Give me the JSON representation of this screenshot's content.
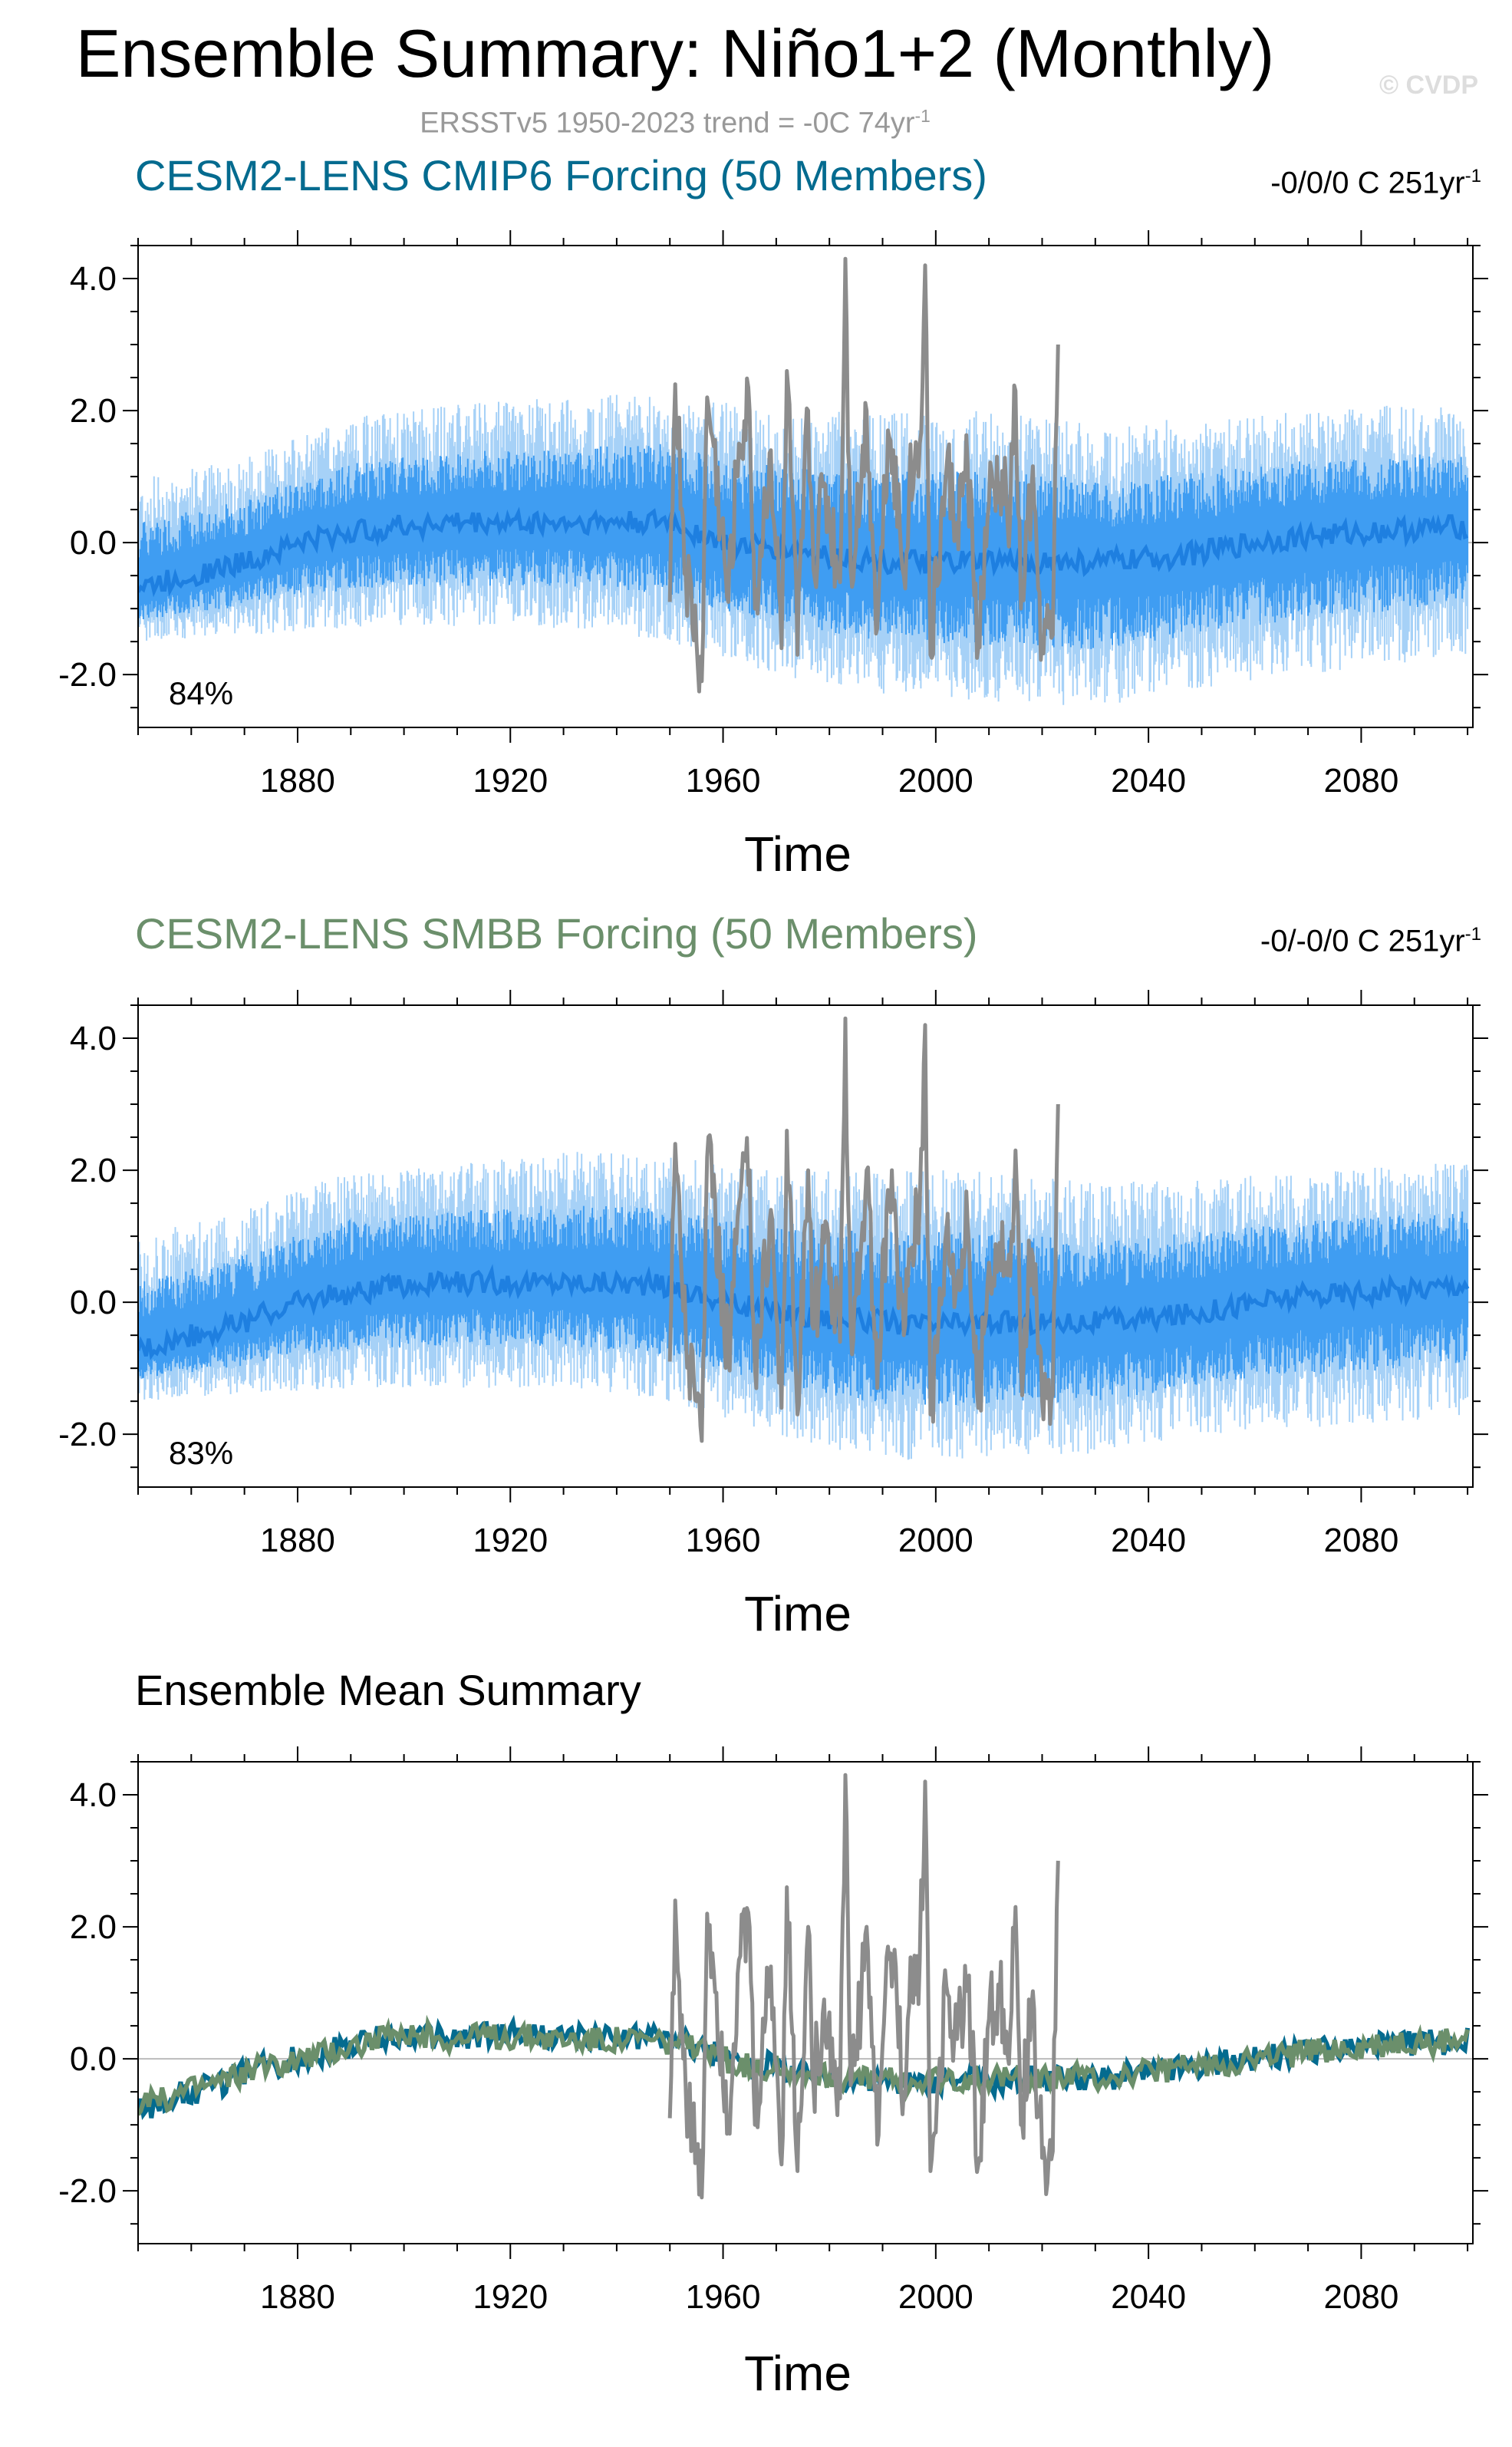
{
  "header": {
    "title": "Ensemble Summary: Niño1+2 (Monthly)",
    "watermark": "© CVDP",
    "subtitle": "ERSSTv5 1950-2023 trend = -0C 74yr",
    "subtitle_sup": "-1"
  },
  "chart_data": [
    {
      "type": "line",
      "title": "CESM2-LENS CMIP6 Forcing (50 Members)",
      "title_color": "#046b8f",
      "trend_label": "-0/0/0 C 251yr",
      "trend_sup": "-1",
      "percent_label": "84%",
      "xlabel": "Time",
      "xlim": [
        1850,
        2101
      ],
      "ylim": [
        -2.8,
        4.5
      ],
      "xticks": [
        1880,
        1920,
        1960,
        2000,
        2040,
        2080
      ],
      "yticks": [
        -2.0,
        0.0,
        2.0,
        4.0
      ],
      "ytick_labels": [
        "-2.0",
        "0.0",
        "2.0",
        "4.0"
      ],
      "grid": false,
      "series": [
        {
          "role": "ensemble-range",
          "color": "#a6d1f7"
        },
        {
          "role": "ensemble-iqr",
          "color": "#3f9df2"
        },
        {
          "role": "ensemble-mean",
          "color": "#1e7fe0"
        },
        {
          "role": "observations",
          "color": "#8c8c8c"
        }
      ],
      "ensemble_mean": {
        "x": [
          1850,
          1860,
          1870,
          1880,
          1890,
          1900,
          1910,
          1920,
          1930,
          1940,
          1950,
          1960,
          1970,
          1980,
          1990,
          2000,
          2010,
          2020,
          2030,
          2040,
          2050,
          2060,
          2070,
          2080,
          2090,
          2100
        ],
        "y": [
          -0.7,
          -0.5,
          -0.3,
          0.0,
          0.15,
          0.25,
          0.3,
          0.3,
          0.3,
          0.3,
          0.3,
          0.0,
          -0.1,
          -0.2,
          -0.3,
          -0.3,
          -0.3,
          -0.3,
          -0.3,
          -0.25,
          -0.15,
          0.0,
          0.1,
          0.15,
          0.2,
          0.25
        ]
      },
      "ensemble_max": {
        "x": [
          1850,
          1870,
          1890,
          1910,
          1930,
          1950,
          1970,
          1990,
          2010,
          2030,
          2050,
          2070,
          2090,
          2100
        ],
        "y": [
          1.0,
          1.3,
          1.9,
          2.1,
          2.2,
          2.3,
          2.0,
          2.0,
          2.0,
          1.8,
          1.9,
          2.0,
          2.1,
          2.0
        ]
      },
      "ensemble_min": {
        "x": [
          1850,
          1870,
          1890,
          1910,
          1930,
          1950,
          1970,
          1990,
          2010,
          2030,
          2050,
          2070,
          2090,
          2100
        ],
        "y": [
          -1.5,
          -1.4,
          -1.3,
          -1.3,
          -1.3,
          -1.5,
          -2.0,
          -2.3,
          -2.4,
          -2.5,
          -2.2,
          -2.0,
          -1.8,
          -1.7
        ]
      },
      "observations": {
        "x": [
          1950,
          1951,
          1953,
          1955,
          1956,
          1957,
          1958,
          1961,
          1963,
          1965,
          1966,
          1968,
          1969,
          1971,
          1972,
          1974,
          1976,
          1977,
          1979,
          1982,
          1983,
          1984,
          1986,
          1987,
          1989,
          1991,
          1992,
          1994,
          1995,
          1997,
          1998,
          1999,
          2002,
          2004,
          2006,
          2008,
          2010,
          2012,
          2014,
          2015,
          2016,
          2018,
          2020,
          2022,
          2023
        ],
        "y": [
          -0.9,
          2.4,
          -0.5,
          -1.5,
          -2.1,
          2.2,
          1.6,
          -0.9,
          1.5,
          2.0,
          -1.0,
          0.6,
          1.4,
          -1.6,
          2.6,
          -1.7,
          2.0,
          -0.4,
          0.9,
          -0.6,
          4.3,
          -0.4,
          0.9,
          2.0,
          -1.3,
          1.7,
          1.4,
          -0.5,
          0.8,
          1.5,
          4.2,
          -1.7,
          1.1,
          0.3,
          1.2,
          -1.6,
          0.6,
          0.9,
          0.4,
          2.3,
          -1.0,
          0.8,
          -1.5,
          -1.4,
          3.0
        ]
      }
    },
    {
      "type": "line",
      "title": "CESM2-LENS SMBB Forcing (50 Members)",
      "title_color": "#6b8f6b",
      "trend_label": "-0/-0/0 C 251yr",
      "trend_sup": "-1",
      "percent_label": "83%",
      "xlabel": "Time",
      "xlim": [
        1850,
        2101
      ],
      "ylim": [
        -2.8,
        4.5
      ],
      "xticks": [
        1880,
        1920,
        1960,
        2000,
        2040,
        2080
      ],
      "yticks": [
        -2.0,
        0.0,
        2.0,
        4.0
      ],
      "ytick_labels": [
        "-2.0",
        "0.0",
        "2.0",
        "4.0"
      ],
      "grid": false,
      "series": [
        {
          "role": "ensemble-range",
          "color": "#a6d1f7"
        },
        {
          "role": "ensemble-iqr",
          "color": "#3f9df2"
        },
        {
          "role": "ensemble-mean",
          "color": "#1e7fe0"
        },
        {
          "role": "observations",
          "color": "#8c8c8c"
        }
      ],
      "ensemble_mean": {
        "x": [
          1850,
          1860,
          1870,
          1880,
          1890,
          1900,
          1910,
          1920,
          1930,
          1940,
          1950,
          1960,
          1970,
          1980,
          1990,
          2000,
          2010,
          2020,
          2030,
          2040,
          2050,
          2060,
          2070,
          2080,
          2090,
          2100
        ],
        "y": [
          -0.7,
          -0.5,
          -0.3,
          0.0,
          0.15,
          0.25,
          0.3,
          0.3,
          0.3,
          0.3,
          0.25,
          0.0,
          -0.15,
          -0.25,
          -0.3,
          -0.35,
          -0.3,
          -0.3,
          -0.3,
          -0.25,
          -0.15,
          0.0,
          0.1,
          0.15,
          0.2,
          0.3
        ]
      },
      "ensemble_max": {
        "x": [
          1850,
          1870,
          1890,
          1910,
          1930,
          1950,
          1970,
          1990,
          2010,
          2030,
          2050,
          2070,
          2090,
          2100
        ],
        "y": [
          1.0,
          1.4,
          2.0,
          2.1,
          2.3,
          2.2,
          2.0,
          2.0,
          2.0,
          1.8,
          1.9,
          2.0,
          2.1,
          2.1
        ]
      },
      "ensemble_min": {
        "x": [
          1850,
          1870,
          1890,
          1910,
          1930,
          1950,
          1970,
          1990,
          2010,
          2030,
          2050,
          2070,
          2090,
          2100
        ],
        "y": [
          -1.5,
          -1.4,
          -1.3,
          -1.3,
          -1.3,
          -1.5,
          -2.0,
          -2.4,
          -2.4,
          -2.3,
          -2.0,
          -1.9,
          -1.8,
          -1.7
        ]
      },
      "observations": {
        "x": [
          1950,
          1951,
          1953,
          1955,
          1956,
          1957,
          1958,
          1961,
          1963,
          1965,
          1966,
          1968,
          1969,
          1971,
          1972,
          1974,
          1976,
          1977,
          1979,
          1982,
          1983,
          1984,
          1986,
          1987,
          1989,
          1991,
          1992,
          1994,
          1995,
          1997,
          1998,
          1999,
          2002,
          2004,
          2006,
          2008,
          2010,
          2012,
          2014,
          2015,
          2016,
          2018,
          2020,
          2022,
          2023
        ],
        "y": [
          -0.9,
          2.4,
          -0.5,
          -1.5,
          -2.1,
          2.2,
          1.6,
          -0.9,
          1.5,
          2.0,
          -1.0,
          0.6,
          1.4,
          -1.6,
          2.6,
          -1.7,
          2.0,
          -0.4,
          0.9,
          -0.6,
          4.3,
          -0.4,
          0.9,
          2.0,
          -1.3,
          1.7,
          1.4,
          -0.5,
          0.8,
          1.5,
          4.2,
          -1.7,
          1.1,
          0.3,
          1.2,
          -1.6,
          0.6,
          0.9,
          0.4,
          2.3,
          -1.0,
          0.8,
          -1.5,
          -1.4,
          3.0
        ]
      }
    },
    {
      "type": "line",
      "title": "Ensemble Mean Summary",
      "title_color": "#000000",
      "xlabel": "Time",
      "xlim": [
        1850,
        2101
      ],
      "ylim": [
        -2.8,
        4.5
      ],
      "xticks": [
        1880,
        1920,
        1960,
        2000,
        2040,
        2080
      ],
      "yticks": [
        -2.0,
        0.0,
        2.0,
        4.0
      ],
      "ytick_labels": [
        "-2.0",
        "0.0",
        "2.0",
        "4.0"
      ],
      "grid": false,
      "series": [
        {
          "role": "cmip6-mean",
          "color": "#046b8f",
          "x": [
            1850,
            1855,
            1860,
            1865,
            1870,
            1875,
            1880,
            1885,
            1890,
            1895,
            1900,
            1905,
            1910,
            1915,
            1920,
            1925,
            1930,
            1935,
            1940,
            1945,
            1950,
            1955,
            1960,
            1965,
            1970,
            1975,
            1980,
            1985,
            1990,
            1995,
            2000,
            2005,
            2010,
            2015,
            2020,
            2025,
            2030,
            2035,
            2040,
            2045,
            2050,
            2055,
            2060,
            2065,
            2070,
            2075,
            2080,
            2085,
            2090,
            2095,
            2100
          ],
          "y": [
            -0.8,
            -0.6,
            -0.5,
            -0.4,
            -0.2,
            -0.1,
            0.0,
            0.1,
            0.2,
            0.3,
            0.35,
            0.35,
            0.3,
            0.35,
            0.4,
            0.35,
            0.3,
            0.35,
            0.3,
            0.35,
            0.3,
            0.2,
            0.0,
            -0.1,
            -0.1,
            -0.2,
            -0.25,
            -0.3,
            -0.35,
            -0.4,
            -0.35,
            -0.3,
            -0.35,
            -0.3,
            -0.3,
            -0.25,
            -0.3,
            -0.25,
            -0.2,
            -0.15,
            -0.1,
            -0.05,
            0.0,
            0.05,
            0.1,
            0.15,
            0.2,
            0.2,
            0.25,
            0.25,
            0.3
          ]
        },
        {
          "role": "smbb-mean",
          "color": "#6b8f6b",
          "x": [
            1850,
            1855,
            1860,
            1865,
            1870,
            1875,
            1880,
            1885,
            1890,
            1895,
            1900,
            1905,
            1910,
            1915,
            1920,
            1925,
            1930,
            1935,
            1940,
            1945,
            1950,
            1955,
            1960,
            1965,
            1970,
            1975,
            1980,
            1985,
            1990,
            1995,
            2000,
            2005,
            2010,
            2015,
            2020,
            2025,
            2030,
            2035,
            2040,
            2045,
            2050,
            2055,
            2060,
            2065,
            2070,
            2075,
            2080,
            2085,
            2090,
            2095,
            2100
          ],
          "y": [
            -0.75,
            -0.6,
            -0.45,
            -0.35,
            -0.2,
            -0.1,
            0.0,
            0.1,
            0.2,
            0.3,
            0.3,
            0.35,
            0.3,
            0.35,
            0.35,
            0.35,
            0.3,
            0.3,
            0.3,
            0.3,
            0.25,
            0.15,
            0.0,
            -0.1,
            -0.15,
            -0.2,
            -0.25,
            -0.3,
            -0.3,
            -0.35,
            -0.35,
            -0.3,
            -0.3,
            -0.3,
            -0.3,
            -0.25,
            -0.3,
            -0.25,
            -0.2,
            -0.15,
            -0.1,
            -0.05,
            0.0,
            0.05,
            0.1,
            0.15,
            0.15,
            0.2,
            0.25,
            0.25,
            0.3
          ]
        },
        {
          "role": "observations",
          "color": "#8c8c8c",
          "x": [
            1950,
            1951,
            1953,
            1955,
            1956,
            1957,
            1958,
            1961,
            1963,
            1965,
            1966,
            1968,
            1969,
            1971,
            1972,
            1974,
            1976,
            1977,
            1979,
            1982,
            1983,
            1984,
            1986,
            1987,
            1989,
            1991,
            1992,
            1994,
            1995,
            1997,
            1998,
            1999,
            2002,
            2004,
            2006,
            2008,
            2010,
            2012,
            2014,
            2015,
            2016,
            2018,
            2020,
            2022,
            2023
          ],
          "y": [
            -0.9,
            2.4,
            -0.5,
            -1.5,
            -2.1,
            2.2,
            1.6,
            -0.9,
            1.5,
            2.0,
            -1.0,
            0.6,
            1.4,
            -1.6,
            2.6,
            -1.7,
            2.0,
            -0.4,
            0.9,
            -0.6,
            4.3,
            -0.4,
            0.9,
            2.0,
            -1.3,
            1.7,
            1.4,
            -0.5,
            0.8,
            1.5,
            4.2,
            -1.7,
            1.1,
            0.3,
            1.2,
            -1.6,
            0.6,
            0.9,
            0.4,
            2.3,
            -1.0,
            0.8,
            -1.5,
            -1.4,
            3.0
          ]
        }
      ]
    }
  ]
}
